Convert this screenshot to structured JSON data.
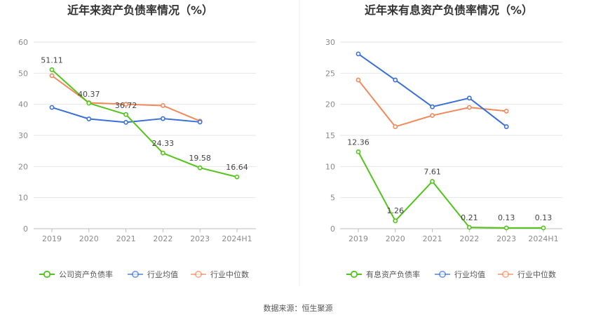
{
  "source": "数据来源：恒生聚源",
  "chart_data": [
    {
      "type": "line",
      "title": "近年来资产负债率情况（%）",
      "categories": [
        "2019",
        "2020",
        "2021",
        "2022",
        "2023",
        "2024H1"
      ],
      "ylim": [
        0,
        60
      ],
      "yticks": [
        "0",
        "10",
        "20",
        "30",
        "40",
        "50",
        "60"
      ],
      "grid": true,
      "legend_position": "bottom",
      "series": [
        {
          "name": "公司资产负债率",
          "color": "#52c41a",
          "values": [
            51.11,
            40.37,
            36.72,
            24.33,
            19.58,
            16.64
          ],
          "labels": [
            "51.11",
            "40.37",
            "36.72",
            "24.33",
            "19.58",
            "16.64"
          ]
        },
        {
          "name": "行业均值",
          "color": "#3a6fd8",
          "values": [
            39.0,
            35.3,
            34.2,
            35.4,
            34.3,
            null
          ]
        },
        {
          "name": "行业中位数",
          "color": "#f08a5d",
          "values": [
            49.2,
            40.5,
            40.0,
            39.6,
            34.6,
            null
          ]
        }
      ]
    },
    {
      "type": "line",
      "title": "近年来有息资产负债率情况（%）",
      "categories": [
        "2019",
        "2020",
        "2021",
        "2022",
        "2023",
        "2024H1"
      ],
      "ylim": [
        0,
        30
      ],
      "yticks": [
        "0",
        "5",
        "10",
        "15",
        "20",
        "25",
        "30"
      ],
      "grid": true,
      "legend_position": "bottom",
      "series": [
        {
          "name": "有息资产负债率",
          "color": "#52c41a",
          "values": [
            12.36,
            1.26,
            7.61,
            0.21,
            0.13,
            0.13
          ],
          "labels": [
            "12.36",
            "1.26",
            "7.61",
            "0.21",
            "0.13",
            "0.13"
          ]
        },
        {
          "name": "行业均值",
          "color": "#3a6fd8",
          "values": [
            28.1,
            23.9,
            19.6,
            21.0,
            16.4,
            null
          ]
        },
        {
          "name": "行业中位数",
          "color": "#f08a5d",
          "values": [
            23.9,
            16.4,
            18.2,
            19.5,
            18.9,
            null
          ]
        }
      ]
    }
  ]
}
